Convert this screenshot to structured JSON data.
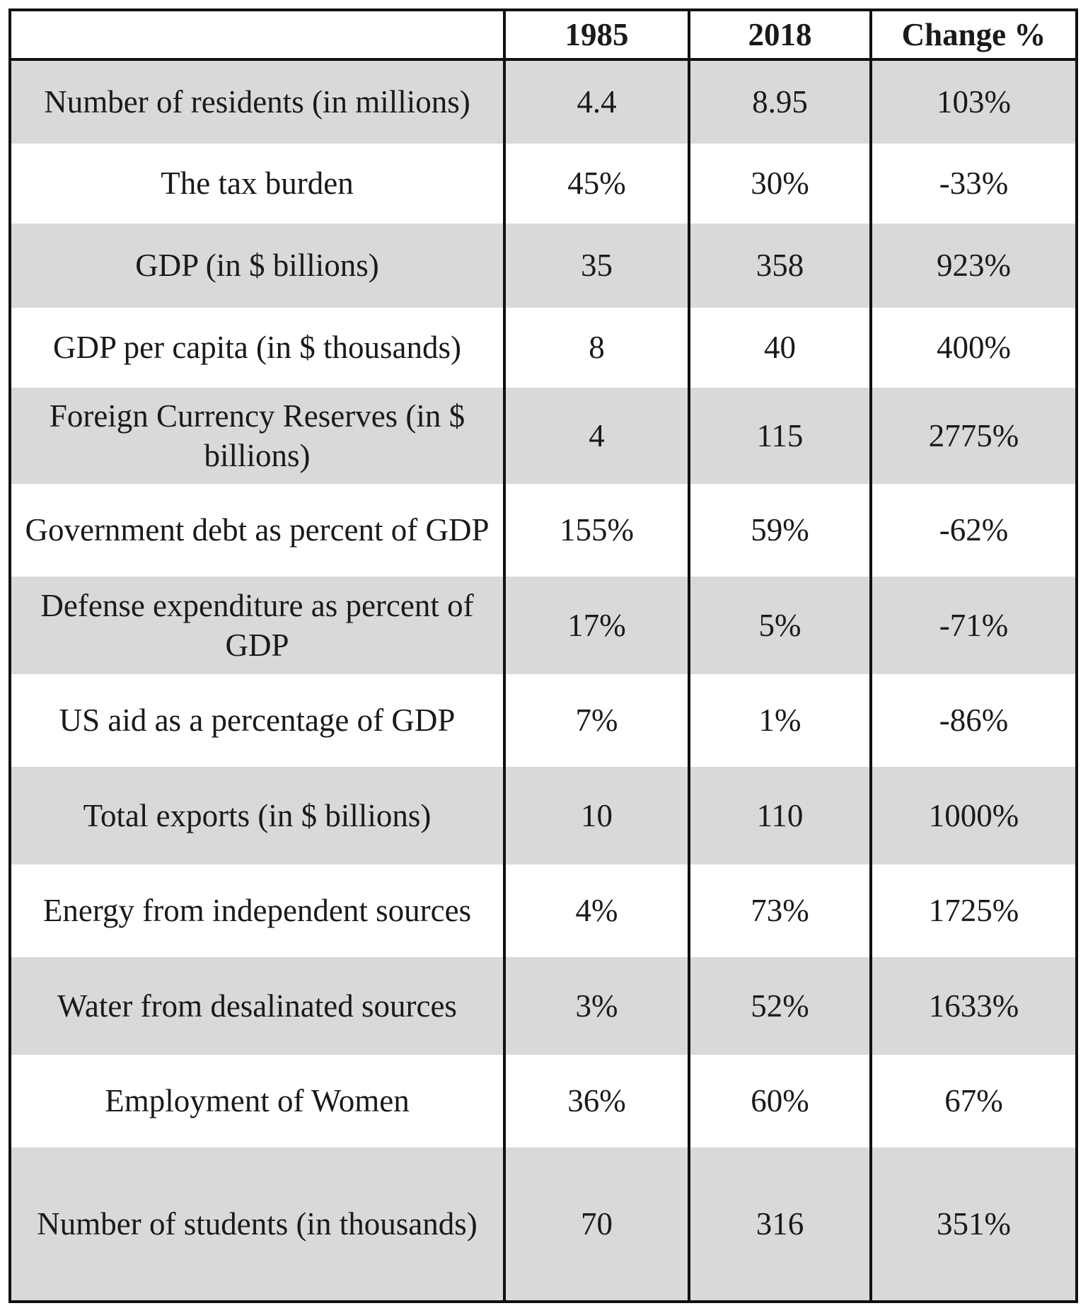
{
  "table": {
    "header": [
      "",
      "1985",
      "2018",
      "Change %"
    ],
    "rows": [
      {
        "label": "Number of residents (in millions)",
        "y1985": "4.4",
        "y2018": "8.95",
        "change": "103%"
      },
      {
        "label": "The tax burden",
        "y1985": "45%",
        "y2018": "30%",
        "change": "-33%"
      },
      {
        "label": "GDP (in $ billions)",
        "y1985": "35",
        "y2018": "358",
        "change": "923%"
      },
      {
        "label": "GDP per capita (in $ thousands)",
        "y1985": "8",
        "y2018": "40",
        "change": "400%"
      },
      {
        "label": "Foreign Currency Reserves (in $ billions)",
        "y1985": "4",
        "y2018": "115",
        "change": "2775%"
      },
      {
        "label": "Government debt as percent of GDP",
        "y1985": "155%",
        "y2018": "59%",
        "change": "-62%"
      },
      {
        "label": "Defense expenditure as percent of GDP",
        "y1985": "17%",
        "y2018": "5%",
        "change": "-71%"
      },
      {
        "label": "US aid as a percentage of GDP",
        "y1985": "7%",
        "y2018": "1%",
        "change": "-86%"
      },
      {
        "label": "Total exports (in $ billions)",
        "y1985": "10",
        "y2018": "110",
        "change": "1000%"
      },
      {
        "label": "Energy from independent sources",
        "y1985": "4%",
        "y2018": "73%",
        "change": "1725%"
      },
      {
        "label": "Water from desalinated sources",
        "y1985": "3%",
        "y2018": "52%",
        "change": "1633%"
      },
      {
        "label": "Employment of Women",
        "y1985": "36%",
        "y2018": "60%",
        "change": "67%"
      },
      {
        "label": "Number of students (in thousands)",
        "y1985": "70",
        "y2018": "316",
        "change": "351%"
      }
    ]
  },
  "colors": {
    "shaded_row": "#d9d9d9",
    "plain_row": "#ffffff",
    "border": "#111111"
  }
}
